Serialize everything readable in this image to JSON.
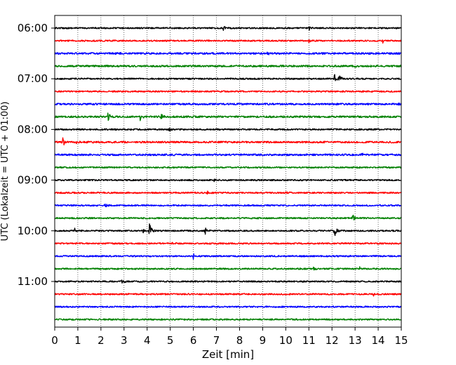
{
  "chart_data": {
    "type": "line",
    "xlabel": "Zeit  [min]",
    "ylabel": "UTC (Lokalzeit = UTC + 01:00)",
    "xlim": [
      0,
      15
    ],
    "x_ticks": [
      0,
      1,
      2,
      3,
      4,
      5,
      6,
      7,
      8,
      9,
      10,
      11,
      12,
      13,
      14,
      15
    ],
    "y_ticks": [
      {
        "row": 0,
        "label": "06:00"
      },
      {
        "row": 4,
        "label": "07:00"
      },
      {
        "row": 8,
        "label": "08:00"
      },
      {
        "row": 12,
        "label": "09:00"
      },
      {
        "row": 16,
        "label": "10:00"
      },
      {
        "row": 20,
        "label": "11:00"
      }
    ],
    "grid": "vertical dotted at each minute",
    "color_cycle": [
      "#000000",
      "#ff0000",
      "#0000ff",
      "#008000"
    ],
    "traces": [
      {
        "start": "06:00",
        "noise": 2,
        "events": [
          {
            "t": 7.3,
            "amp": 4
          },
          {
            "t": 11.0,
            "amp": 3
          }
        ]
      },
      {
        "start": "06:15",
        "noise": 2,
        "events": [
          {
            "t": 11.0,
            "amp": 3
          },
          {
            "t": 14.2,
            "amp": 3
          }
        ]
      },
      {
        "start": "06:30",
        "noise": 2.5,
        "events": [
          {
            "t": 9.2,
            "amp": 3
          }
        ]
      },
      {
        "start": "06:45",
        "noise": 2.5,
        "events": [
          {
            "t": 13.0,
            "amp": 3
          }
        ]
      },
      {
        "start": "07:00",
        "noise": 2,
        "events": [
          {
            "t": 12.1,
            "amp": 7
          },
          {
            "t": 12.3,
            "amp": 9
          }
        ]
      },
      {
        "start": "07:15",
        "noise": 2,
        "events": []
      },
      {
        "start": "07:30",
        "noise": 2.5,
        "events": [
          {
            "t": 14.9,
            "amp": 4
          }
        ]
      },
      {
        "start": "07:45",
        "noise": 2.5,
        "events": [
          {
            "t": 2.3,
            "amp": 9
          },
          {
            "t": 3.7,
            "amp": 6
          },
          {
            "t": 4.6,
            "amp": 5
          }
        ]
      },
      {
        "start": "08:00",
        "noise": 2,
        "events": [
          {
            "t": 4.95,
            "amp": 6
          }
        ]
      },
      {
        "start": "08:15",
        "noise": 2.5,
        "events": [
          {
            "t": 0.35,
            "amp": 8
          },
          {
            "t": 0.9,
            "amp": 3
          }
        ]
      },
      {
        "start": "08:30",
        "noise": 2.5,
        "events": [
          {
            "t": 13.3,
            "amp": 3
          }
        ]
      },
      {
        "start": "08:45",
        "noise": 2,
        "events": []
      },
      {
        "start": "09:00",
        "noise": 2,
        "events": [
          {
            "t": 6.9,
            "amp": 4
          }
        ]
      },
      {
        "start": "09:15",
        "noise": 2,
        "events": [
          {
            "t": 6.6,
            "amp": 3
          },
          {
            "t": 10.0,
            "amp": 4
          }
        ]
      },
      {
        "start": "09:30",
        "noise": 2,
        "events": [
          {
            "t": 2.2,
            "amp": 4
          }
        ]
      },
      {
        "start": "09:45",
        "noise": 2,
        "events": [
          {
            "t": 12.9,
            "amp": 5
          }
        ]
      },
      {
        "start": "10:00",
        "noise": 2,
        "events": [
          {
            "t": 0.85,
            "amp": 5
          },
          {
            "t": 3.8,
            "amp": 5
          },
          {
            "t": 4.1,
            "amp": 14
          },
          {
            "t": 6.5,
            "amp": 6
          },
          {
            "t": 12.1,
            "amp": 12
          }
        ]
      },
      {
        "start": "10:15",
        "noise": 2,
        "events": [
          {
            "t": 5.1,
            "amp": 3
          }
        ]
      },
      {
        "start": "10:30",
        "noise": 2,
        "events": [
          {
            "t": 6.0,
            "amp": 4
          }
        ]
      },
      {
        "start": "10:45",
        "noise": 2,
        "events": [
          {
            "t": 11.2,
            "amp": 3
          },
          {
            "t": 13.2,
            "amp": 3
          }
        ]
      },
      {
        "start": "11:00",
        "noise": 2,
        "events": [
          {
            "t": 2.9,
            "amp": 3
          }
        ]
      },
      {
        "start": "11:15",
        "noise": 2,
        "events": [
          {
            "t": 13.8,
            "amp": 3
          }
        ]
      },
      {
        "start": "11:30",
        "noise": 2,
        "events": []
      },
      {
        "start": "11:45",
        "noise": 2,
        "events": []
      }
    ]
  }
}
